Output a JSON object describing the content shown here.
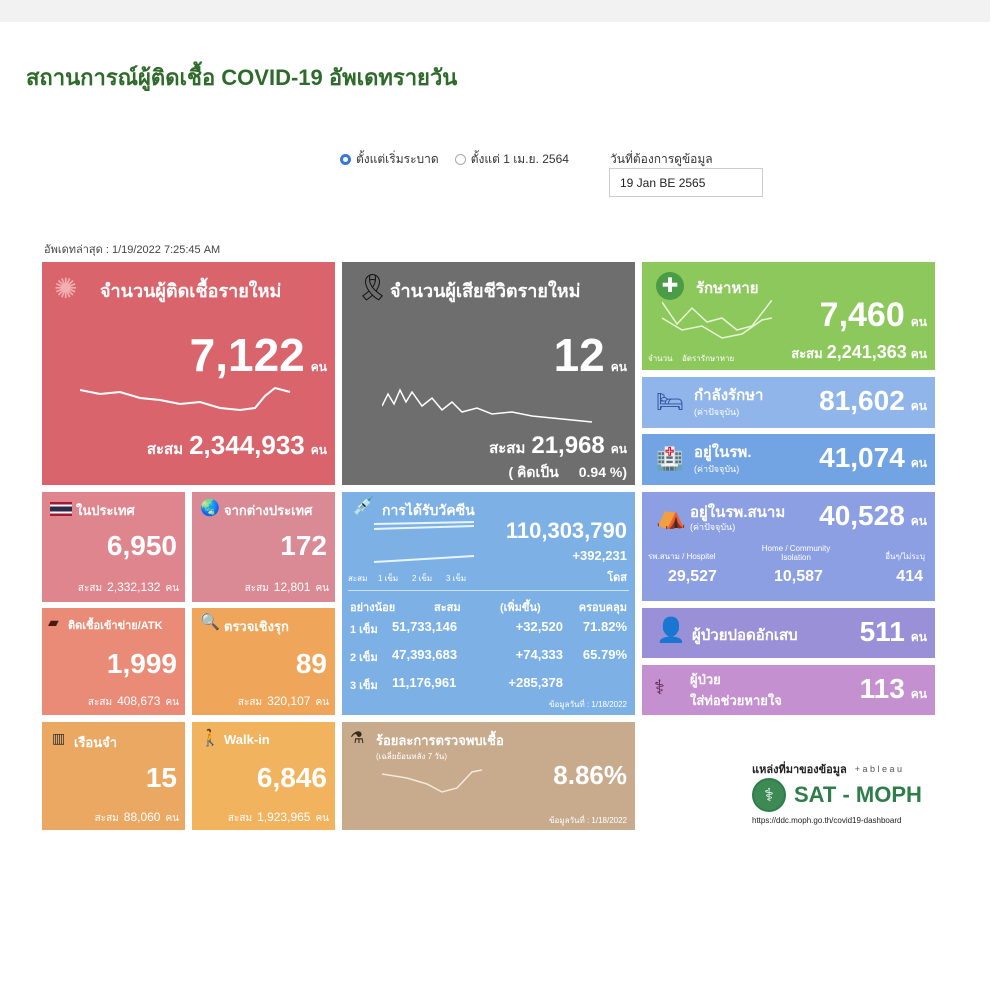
{
  "header": {
    "title": "สถานการณ์ผู้ติดเชื้อ COVID-19 อัพเดทรายวัน"
  },
  "filters": {
    "option1": "ตั้งแต่เริ่มระบาด",
    "option2": "ตั้งแต่ 1 เม.ย. 2564",
    "selected": "option1",
    "date_label": "วันที่ต้องการดูข้อมูล",
    "date_value": "19 Jan BE 2565"
  },
  "updated": "อัพเดทล่าสุด : 1/19/2022 7:25:45 AM",
  "unit": "คน",
  "cum": "สะสม",
  "new_cases": {
    "label": "จำนวนผู้ติดเชื้อรายใหม่",
    "value": "7,122",
    "cum": "2,344,933",
    "color": "#d9646b"
  },
  "new_deaths": {
    "label": "จำนวนผู้เสียชีวิตรายใหม่",
    "value": "12",
    "cum": "21,968",
    "rate_label": "( คิดเป็น",
    "rate": "0.94 %)",
    "color": "#6e6e6e"
  },
  "recovered": {
    "label": "รักษาหาย",
    "value": "7,460",
    "cum": "2,241,363",
    "legend1": "จำนวน",
    "legend2": "อัตรารักษาหาย",
    "color": "#8dc85c"
  },
  "treating": {
    "label": "กำลังรักษา",
    "sub": "(ค่าปัจจุบัน)",
    "value": "81,602",
    "color": "#8fb5ea"
  },
  "hospital": {
    "label": "อยู่ในรพ.",
    "sub": "(ค่าปัจจุบัน)",
    "value": "41,074",
    "color": "#72a3e2"
  },
  "field": {
    "label": "อยู่ในรพ.สนาม",
    "sub": "(ค่าปัจจุบัน)",
    "value": "40,528",
    "h1": "รพ.สนาม / Hospitel",
    "v1": "29,527",
    "h2": "Home / Community Isolation",
    "v2": "10,587",
    "h3": "อื่นๆ/ไม่ระบุ",
    "v3": "414",
    "color": "#8c9fe2"
  },
  "pneumonia": {
    "label": "ผู้ป่วยปอดอักเสบ",
    "value": "511",
    "color": "#9a90d8"
  },
  "ventilator": {
    "label1": "ผู้ป่วย",
    "label2": "ใส่ท่อช่วยหายใจ",
    "value": "113",
    "color": "#c590cf"
  },
  "domestic": {
    "label": "ในประเทศ",
    "value": "6,950",
    "cum": "2,332,132",
    "color": "#df858d"
  },
  "abroad": {
    "label": "จากต่างประเทศ",
    "value": "172",
    "cum": "12,801",
    "color": "#d98a95"
  },
  "atk": {
    "label": "ติดเชื้อเข้าข่าย/ATK",
    "value": "1,999",
    "cum": "408,673",
    "color": "#e98b76"
  },
  "proactive": {
    "label": "ตรวจเชิงรุก",
    "value": "89",
    "cum": "320,107",
    "color": "#f0a65a"
  },
  "prison": {
    "label": "เรือนจำ",
    "value": "15",
    "cum": "88,060",
    "color": "#eaa862"
  },
  "walkin": {
    "label": "Walk-in",
    "value": "6,846",
    "cum": "1,923,965",
    "color": "#f1b35e"
  },
  "vaccine": {
    "label": "การได้รับวัคซีน",
    "total": "110,303,790",
    "increase": "+392,231",
    "dose_unit": "โดส",
    "legend": "สะสม",
    "l1": "1 เข็ม",
    "l2": "2 เข็ม",
    "l3": "3 เข็ม",
    "headers": [
      "อย่างน้อย",
      "สะสม",
      "(เพิ่มขึ้น)",
      "ครอบคลุม"
    ],
    "rows": [
      {
        "dose": "1 เข็ม",
        "cum": "51,733,146",
        "inc": "+32,520",
        "cov": "71.82%"
      },
      {
        "dose": "2 เข็ม",
        "cum": "47,393,683",
        "inc": "+74,333",
        "cov": "65.79%"
      },
      {
        "dose": "3 เข็ม",
        "cum": "11,176,961",
        "inc": "+285,378",
        "cov": ""
      }
    ],
    "asof": "ข้อมูลวันที่ : 1/18/2022",
    "color": "#7db1e6"
  },
  "positivity": {
    "label": "ร้อยละการตรวจพบเชื้อ",
    "sub": "(เฉลี่ยย้อนหลัง 7 วัน)",
    "value": "8.86%",
    "asof": "ข้อมูลวันที่ : 1/18/2022",
    "color": "#c8aa8c"
  },
  "source": {
    "label": "แหล่งที่มาของข้อมูล",
    "tableau": "+ a b l e a u",
    "brand": "SAT - MOPH",
    "url": "https://ddc.moph.go.th/covid19-dashboard"
  }
}
